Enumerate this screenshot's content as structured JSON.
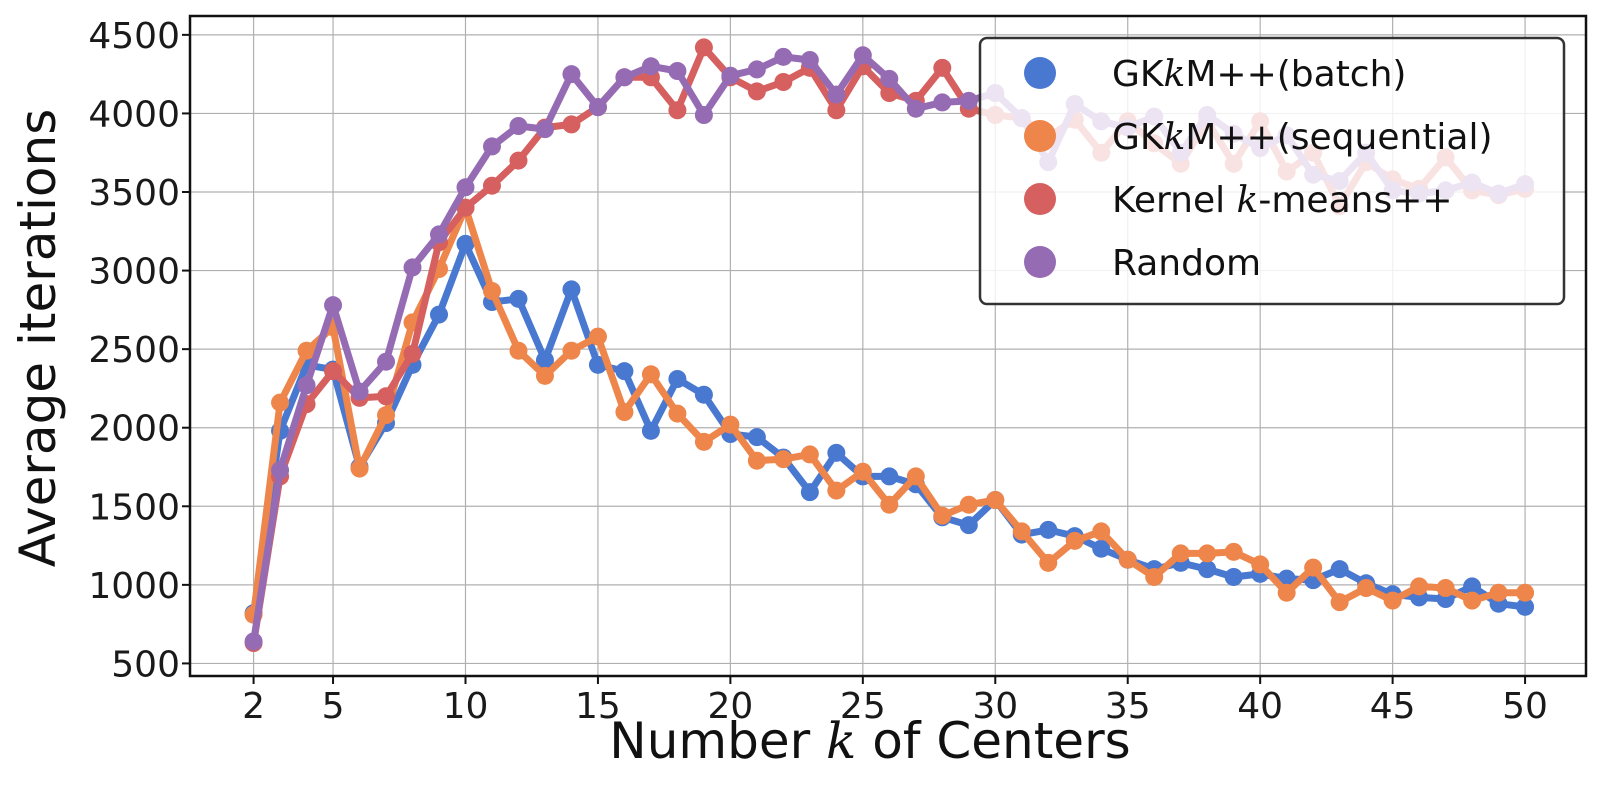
{
  "chart_data": {
    "type": "line",
    "xlabel_parts": [
      "Number ",
      "k",
      " of Centers"
    ],
    "ylabel": "Average iterations",
    "xlim": [
      -0.4,
      52.3
    ],
    "ylim": [
      420,
      4620
    ],
    "xticks": [
      2,
      5,
      10,
      15,
      20,
      25,
      30,
      35,
      40,
      45,
      50
    ],
    "yticks": [
      500,
      1000,
      1500,
      2000,
      2500,
      3000,
      3500,
      4000,
      4500
    ],
    "grid": true,
    "legend_position": "top-right",
    "legend": [
      {
        "parts": [
          "GK",
          "k",
          "M++(batch)"
        ],
        "series": 0
      },
      {
        "parts": [
          "GK",
          "k",
          "M++(sequential)"
        ],
        "series": 1
      },
      {
        "parts": [
          "Kernel ",
          "k",
          "-means++"
        ],
        "series": 2
      },
      {
        "parts": [
          "Random"
        ],
        "series": 3
      }
    ],
    "x": [
      2,
      3,
      4,
      5,
      6,
      7,
      8,
      9,
      10,
      11,
      12,
      13,
      14,
      15,
      16,
      17,
      18,
      19,
      20,
      21,
      22,
      23,
      24,
      25,
      26,
      27,
      28,
      29,
      30,
      31,
      32,
      33,
      34,
      35,
      36,
      37,
      38,
      39,
      40,
      41,
      42,
      43,
      44,
      45,
      46,
      47,
      48,
      49,
      50
    ],
    "series": [
      {
        "color": "#4878d0",
        "values": [
          820,
          1980,
          2400,
          2370,
          1750,
          2030,
          2400,
          2720,
          3170,
          2800,
          2820,
          2430,
          2880,
          2400,
          2360,
          1980,
          2310,
          2210,
          1960,
          1940,
          1810,
          1590,
          1840,
          1690,
          1690,
          1640,
          1430,
          1380,
          1540,
          1320,
          1350,
          1310,
          1230,
          1160,
          1100,
          1140,
          1100,
          1050,
          1070,
          1040,
          1030,
          1100,
          1010,
          940,
          920,
          910,
          990,
          880,
          860
        ]
      },
      {
        "color": "#ee854a",
        "values": [
          810,
          2160,
          2490,
          2640,
          1740,
          2080,
          2670,
          3010,
          3400,
          2870,
          2490,
          2330,
          2490,
          2580,
          2100,
          2340,
          2090,
          1910,
          2020,
          1790,
          1800,
          1830,
          1600,
          1720,
          1510,
          1690,
          1440,
          1510,
          1540,
          1340,
          1140,
          1280,
          1340,
          1160,
          1050,
          1200,
          1200,
          1210,
          1130,
          950,
          1110,
          890,
          980,
          900,
          990,
          980,
          900,
          950,
          950
        ]
      },
      {
        "color": "#d65f5f",
        "values": [
          630,
          1690,
          2150,
          2360,
          2190,
          2200,
          2470,
          3180,
          3400,
          3540,
          3700,
          3910,
          3930,
          4040,
          4230,
          4230,
          4020,
          4420,
          4230,
          4140,
          4200,
          4290,
          4020,
          4300,
          4130,
          4080,
          4290,
          4030,
          3990,
          3970,
          3850,
          3960,
          3750,
          3950,
          3810,
          3680,
          3950,
          3680,
          3950,
          3630,
          3750,
          3410,
          3690,
          3580,
          3520,
          3720,
          3510,
          3480,
          3520
        ]
      },
      {
        "color": "#956cb4",
        "values": [
          640,
          1730,
          2270,
          2780,
          2230,
          2420,
          3020,
          3230,
          3530,
          3790,
          3920,
          3900,
          4250,
          4040,
          4230,
          4300,
          4270,
          3990,
          4240,
          4280,
          4360,
          4340,
          4120,
          4370,
          4220,
          4030,
          4070,
          4080,
          4130,
          3970,
          3690,
          4060,
          3950,
          3910,
          3980,
          3750,
          3990,
          3870,
          3780,
          3860,
          3610,
          3570,
          3750,
          3510,
          3490,
          3510,
          3560,
          3490,
          3550
        ]
      }
    ]
  }
}
